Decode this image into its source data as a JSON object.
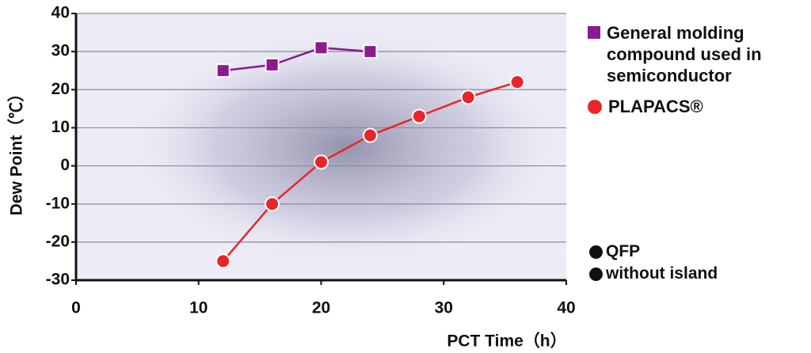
{
  "chart_data": {
    "type": "line",
    "x_label": "PCT Time（h）",
    "y_label": "Dew Point（℃）",
    "xlim": [
      0,
      40
    ],
    "xticks": [
      0,
      10,
      20,
      30,
      40
    ],
    "ylim": [
      -30,
      40
    ],
    "yticks": [
      -30,
      -20,
      -10,
      0,
      10,
      20,
      30,
      40
    ],
    "grid": true,
    "series": [
      {
        "name": "General molding compound used in semiconductor",
        "color": "#8b1a8f",
        "marker": "square",
        "x": [
          12,
          16,
          20,
          24
        ],
        "values": [
          25,
          26.5,
          31,
          30
        ]
      },
      {
        "name": "PLAPACS®",
        "color": "#e8262a",
        "marker": "circle",
        "x": [
          12,
          16,
          20,
          24,
          28,
          32,
          36
        ],
        "values": [
          -25,
          -10,
          1,
          8,
          13,
          18,
          22
        ]
      }
    ],
    "annotations": [
      "QFP",
      "without island"
    ]
  }
}
